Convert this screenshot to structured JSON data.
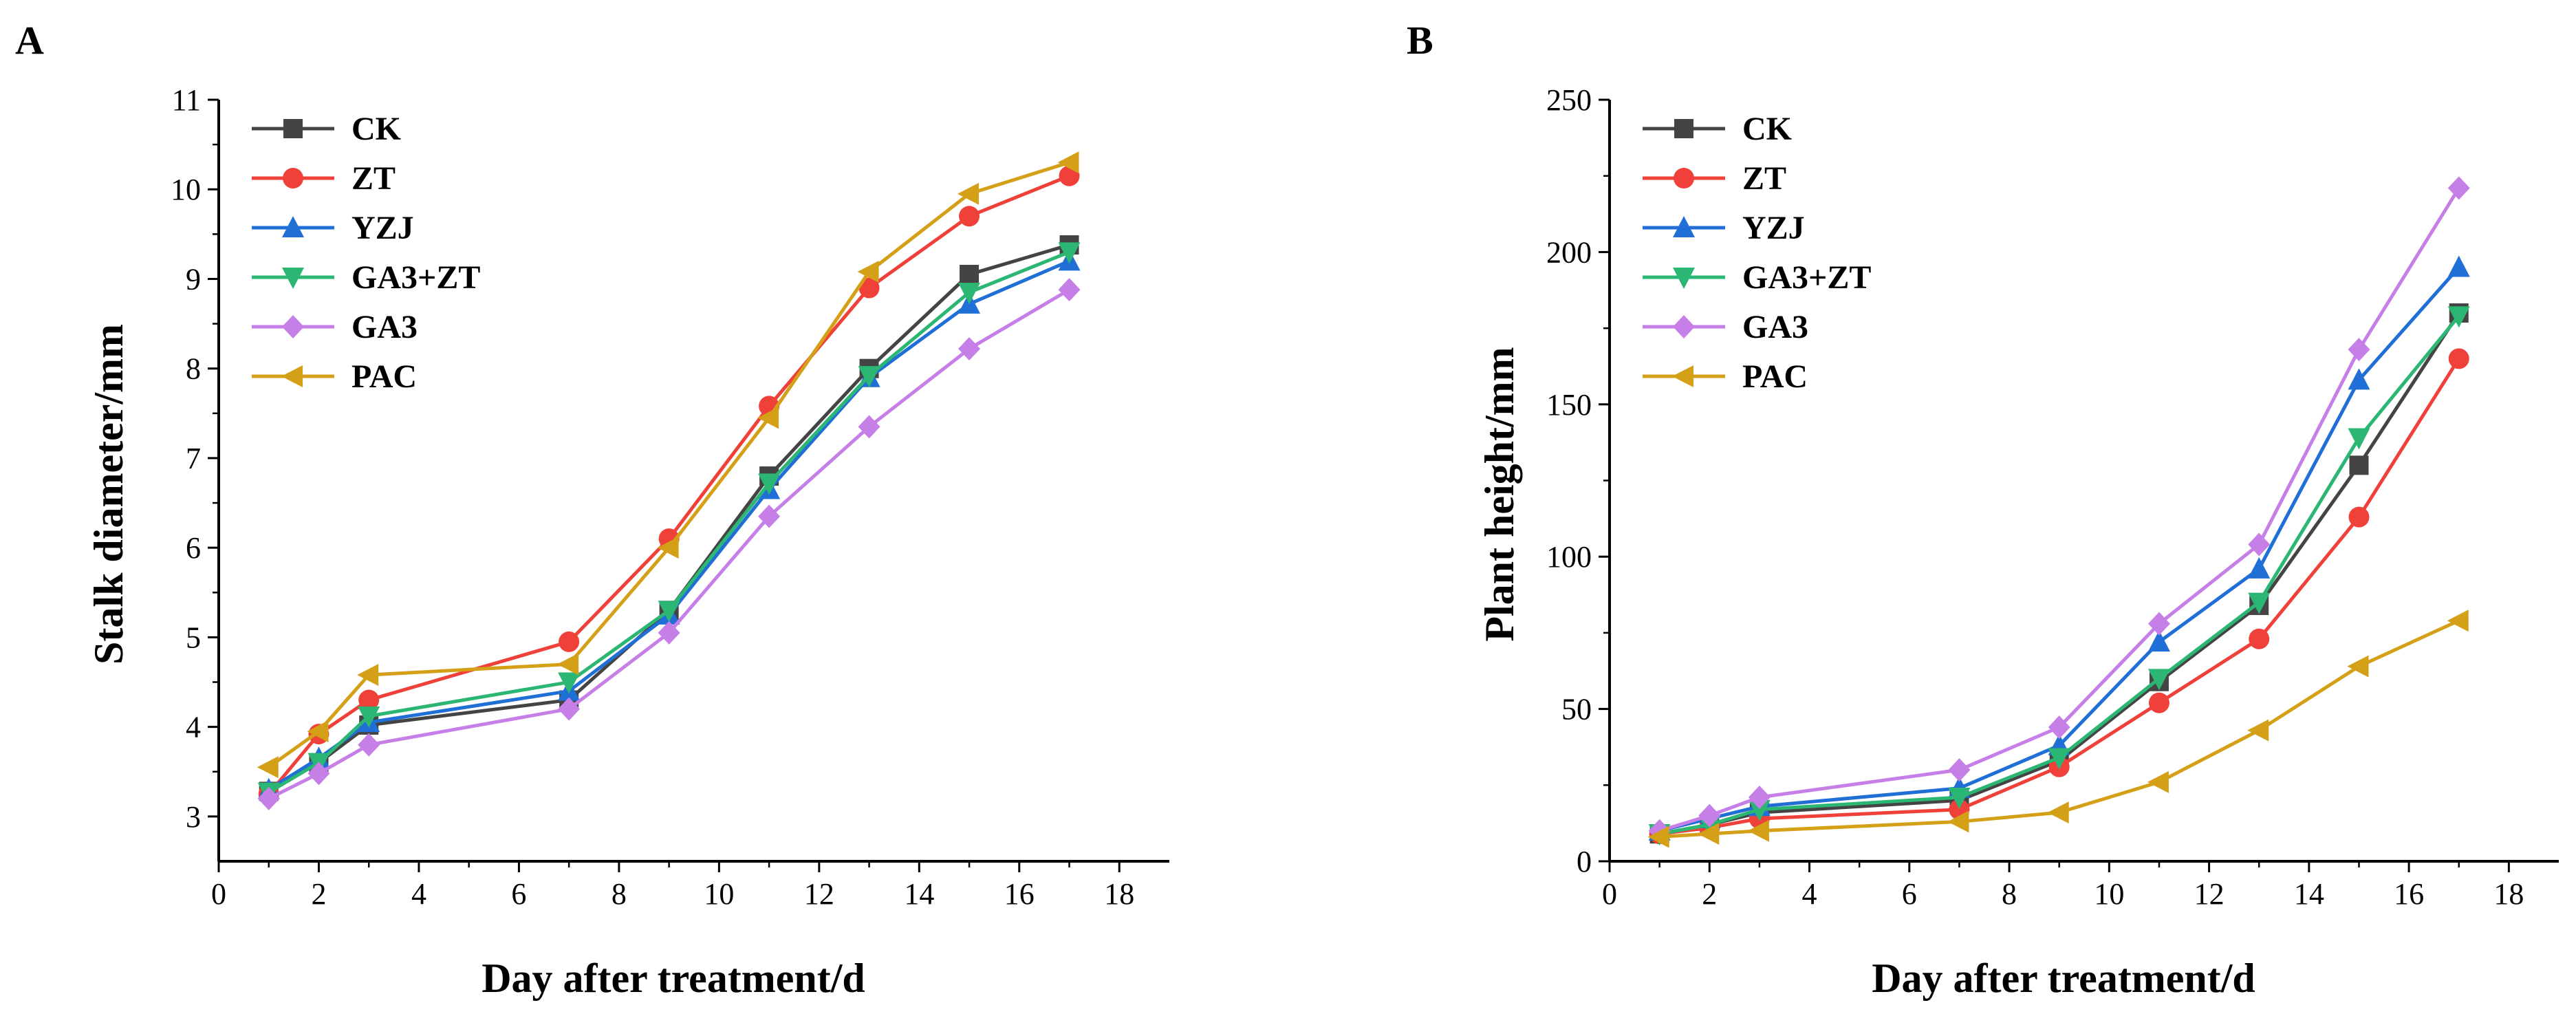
{
  "figure": {
    "panels": [
      "A",
      "B"
    ]
  },
  "chart_data": [
    {
      "type": "line",
      "panel": "A",
      "title": "",
      "xlabel": "Day after treatment/d",
      "ylabel": "Stalk diameter/mm",
      "xlim": [
        0,
        19
      ],
      "ylim": [
        2.5,
        11
      ],
      "xticks": [
        0,
        2,
        4,
        6,
        8,
        10,
        12,
        14,
        16,
        18
      ],
      "yticks": [
        3,
        4,
        5,
        6,
        7,
        8,
        9,
        10,
        11
      ],
      "x": [
        1,
        2,
        3,
        7,
        9,
        11,
        13,
        15,
        17
      ],
      "legend_position": "top-left",
      "series": [
        {
          "name": "CK",
          "color": "#444444",
          "marker": "square",
          "values": [
            3.28,
            3.6,
            4.02,
            4.3,
            5.3,
            6.8,
            8.0,
            9.05,
            9.38
          ]
        },
        {
          "name": "ZT",
          "color": "#f0403a",
          "marker": "circle",
          "values": [
            3.25,
            3.92,
            4.3,
            4.95,
            6.1,
            7.58,
            8.9,
            9.7,
            10.15
          ]
        },
        {
          "name": "YZJ",
          "color": "#1f6fd6",
          "marker": "triangle-up",
          "values": [
            3.3,
            3.65,
            4.05,
            4.4,
            5.25,
            6.65,
            7.9,
            8.72,
            9.2
          ]
        },
        {
          "name": "GA3+ZT",
          "color": "#2bb673",
          "marker": "triangle-down",
          "values": [
            3.27,
            3.6,
            4.12,
            4.5,
            5.3,
            6.72,
            7.92,
            8.85,
            9.3
          ]
        },
        {
          "name": "GA3",
          "color": "#c77fe8",
          "marker": "diamond",
          "values": [
            3.2,
            3.48,
            3.8,
            4.2,
            5.05,
            6.35,
            7.35,
            8.22,
            8.88
          ]
        },
        {
          "name": "PAC",
          "color": "#d4a017",
          "marker": "triangle-left",
          "values": [
            3.55,
            3.95,
            4.58,
            4.7,
            6.0,
            7.45,
            9.08,
            9.95,
            10.3
          ]
        }
      ]
    },
    {
      "type": "line",
      "panel": "B",
      "title": "",
      "xlabel": "Day after treatment/d",
      "ylabel": "Plant height/mm",
      "xlim": [
        0,
        19
      ],
      "ylim": [
        0,
        250
      ],
      "xticks": [
        0,
        2,
        4,
        6,
        8,
        10,
        12,
        14,
        16,
        18
      ],
      "yticks": [
        0,
        50,
        100,
        150,
        200,
        250
      ],
      "x": [
        1,
        2,
        3,
        7,
        9,
        11,
        13,
        15,
        17
      ],
      "legend_position": "top-left",
      "series": [
        {
          "name": "CK",
          "color": "#444444",
          "marker": "square",
          "values": [
            9,
            12,
            16,
            20,
            33,
            59,
            84,
            130,
            180
          ]
        },
        {
          "name": "ZT",
          "color": "#f0403a",
          "marker": "circle",
          "values": [
            9,
            11,
            14,
            17,
            31,
            52,
            73,
            113,
            165
          ]
        },
        {
          "name": "YZJ",
          "color": "#1f6fd6",
          "marker": "triangle-up",
          "values": [
            10,
            14,
            18,
            24,
            38,
            72,
            96,
            158,
            195
          ]
        },
        {
          "name": "GA3+ZT",
          "color": "#2bb673",
          "marker": "triangle-down",
          "values": [
            9,
            12,
            17,
            21,
            34,
            60,
            85,
            139,
            179
          ]
        },
        {
          "name": "GA3",
          "color": "#c77fe8",
          "marker": "diamond",
          "values": [
            10,
            15,
            21,
            30,
            44,
            78,
            104,
            168,
            221
          ]
        },
        {
          "name": "PAC",
          "color": "#d4a017",
          "marker": "triangle-left",
          "values": [
            8,
            9,
            10,
            13,
            16,
            26,
            43,
            64,
            79
          ]
        }
      ]
    }
  ]
}
